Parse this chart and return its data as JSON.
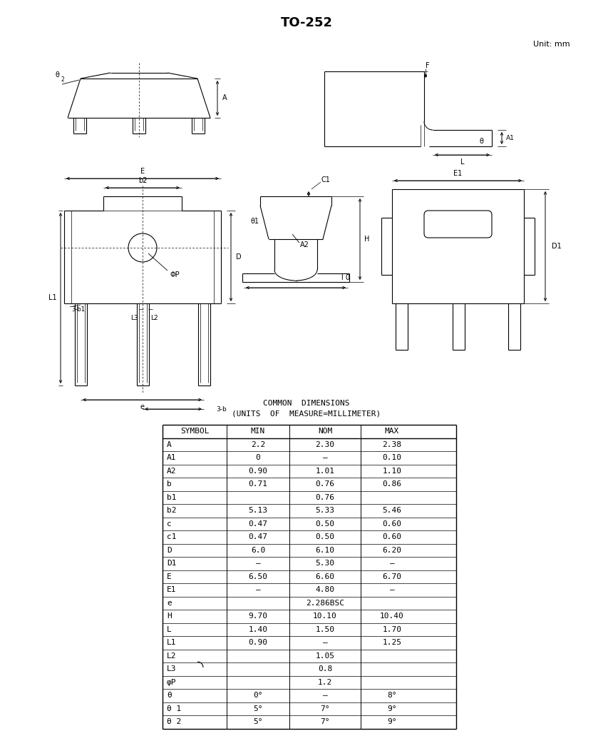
{
  "title": "TO-252",
  "unit_text": "Unit: mm",
  "common_dimensions_line1": "COMMON  DIMENSIONS",
  "common_dimensions_line2": "(UNITS  OF  MEASURE=MILLIMETER)",
  "table_headers": [
    "SYMBOL",
    "MIN",
    "NOM",
    "MAX"
  ],
  "table_rows": [
    [
      "A",
      "2.2",
      "2.30",
      "2.38"
    ],
    [
      "A1",
      "0",
      "–",
      "0.10"
    ],
    [
      "A2",
      "0.90",
      "1.01",
      "1.10"
    ],
    [
      "b",
      "0.71",
      "0.76",
      "0.86"
    ],
    [
      "b1",
      "",
      "0.76",
      ""
    ],
    [
      "b2",
      "5.13",
      "5.33",
      "5.46"
    ],
    [
      "c",
      "0.47",
      "0.50",
      "0.60"
    ],
    [
      "c1",
      "0.47",
      "0.50",
      "0.60"
    ],
    [
      "D",
      "6.0",
      "6.10",
      "6.20"
    ],
    [
      "D1",
      "–",
      "5.30",
      "–"
    ],
    [
      "E",
      "6.50",
      "6.60",
      "6.70"
    ],
    [
      "E1",
      "–",
      "4.80",
      "–"
    ],
    [
      "e",
      "",
      "2.286BSC",
      ""
    ],
    [
      "H",
      "9.70",
      "10.10",
      "10.40"
    ],
    [
      "L",
      "1.40",
      "1.50",
      "1.70"
    ],
    [
      "L1",
      "0.90",
      "–",
      "1.25"
    ],
    [
      "L2",
      "",
      "1.05",
      ""
    ],
    [
      "L3",
      "",
      "0.8",
      ""
    ],
    [
      "φP",
      "",
      "1.2",
      ""
    ],
    [
      "θ",
      "0°",
      "–",
      "8°"
    ],
    [
      "θ 1",
      "5°",
      "7°",
      "9°"
    ],
    [
      "θ 2",
      "5°",
      "7°",
      "9°"
    ]
  ],
  "bg_color": "#ffffff",
  "line_color": "#000000",
  "font_color": "#000000"
}
